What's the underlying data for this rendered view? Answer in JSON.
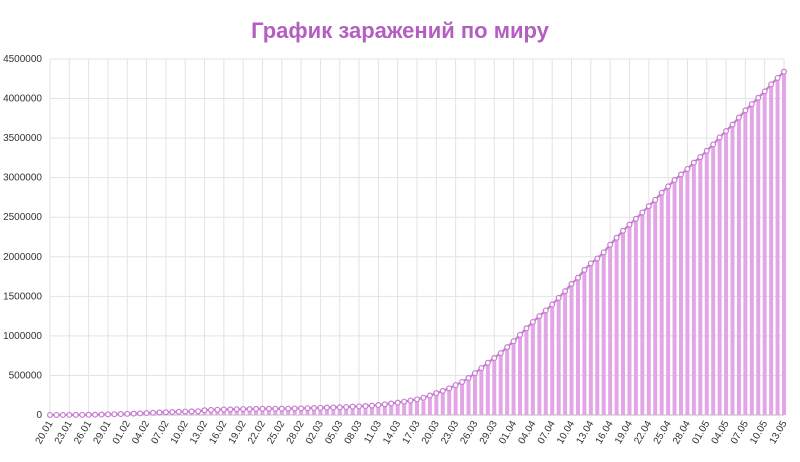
{
  "chart_data": {
    "type": "bar",
    "title": "График заражений по миру",
    "xlabel": "",
    "ylabel": "",
    "ylim": [
      0,
      4500000
    ],
    "yticks": [
      0,
      500000,
      1000000,
      1500000,
      2000000,
      2500000,
      3000000,
      3500000,
      4000000,
      4500000
    ],
    "grid": true,
    "legend": "none",
    "colors": {
      "title": "#b35fc0",
      "bar": "#e2a6e6",
      "line": "#c77dd0",
      "point": "#c77dd0",
      "grid": "#e3e3e3"
    },
    "categories": [
      "20.01",
      "21.01",
      "22.01",
      "23.01",
      "24.01",
      "25.01",
      "26.01",
      "27.01",
      "28.01",
      "29.01",
      "30.01",
      "31.01",
      "01.02",
      "02.02",
      "03.02",
      "04.02",
      "05.02",
      "06.02",
      "07.02",
      "08.02",
      "09.02",
      "10.02",
      "11.02",
      "12.02",
      "13.02",
      "14.02",
      "15.02",
      "16.02",
      "17.02",
      "18.02",
      "19.02",
      "20.02",
      "21.02",
      "22.02",
      "23.02",
      "24.02",
      "25.02",
      "26.02",
      "27.02",
      "28.02",
      "29.02",
      "01.03",
      "02.03",
      "03.03",
      "04.03",
      "05.03",
      "06.03",
      "07.03",
      "08.03",
      "09.03",
      "10.03",
      "11.03",
      "12.03",
      "13.03",
      "14.03",
      "15.03",
      "16.03",
      "17.03",
      "18.03",
      "19.03",
      "20.03",
      "21.03",
      "22.03",
      "23.03",
      "24.03",
      "25.03",
      "26.03",
      "27.03",
      "28.03",
      "29.03",
      "30.03",
      "31.03",
      "01.04",
      "02.04",
      "03.04",
      "04.04",
      "05.04",
      "06.04",
      "07.04",
      "08.04",
      "09.04",
      "10.04",
      "11.04",
      "12.04",
      "13.04",
      "14.04",
      "15.04",
      "16.04",
      "17.04",
      "18.04",
      "19.04",
      "20.04",
      "21.04",
      "22.04",
      "23.04",
      "24.04",
      "25.04",
      "26.04",
      "27.04",
      "28.04",
      "29.04",
      "30.04",
      "01.05",
      "02.05",
      "03.05",
      "04.05",
      "05.05",
      "06.05",
      "07.05",
      "08.05",
      "09.05",
      "10.05",
      "11.05",
      "12.05",
      "13.05"
    ],
    "tick_labels": [
      "20.01",
      "23.01",
      "26.01",
      "29.01",
      "01.02",
      "04.02",
      "07.02",
      "10.02",
      "13.02",
      "16.02",
      "19.02",
      "22.02",
      "25.02",
      "28.02",
      "02.03",
      "05.03",
      "08.03",
      "11.03",
      "14.03",
      "17.03",
      "20.03",
      "23.03",
      "26.03",
      "29.03",
      "01.04",
      "04.04",
      "07.04",
      "10.04",
      "13.04",
      "16.04",
      "19.04",
      "22.04",
      "25.04",
      "28.04",
      "01.05",
      "04.05",
      "07.05",
      "10.05",
      "13.05"
    ],
    "values": [
      300,
      400,
      600,
      900,
      1300,
      2000,
      2800,
      4600,
      6000,
      7800,
      9800,
      11900,
      14600,
      17400,
      20600,
      24500,
      28300,
      31500,
      34900,
      37600,
      40500,
      43100,
      45200,
      47700,
      60000,
      64000,
      67000,
      69000,
      71000,
      73000,
      75000,
      75700,
      76800,
      78600,
      79000,
      79500,
      80400,
      81300,
      82700,
      84100,
      86000,
      88300,
      90400,
      92800,
      95100,
      97900,
      101800,
      105800,
      109800,
      113600,
      118600,
      125900,
      134500,
      145500,
      156100,
      169400,
      182400,
      198100,
      218800,
      245700,
      275900,
      304500,
      337200,
      378400,
      417500,
      467600,
      529600,
      593300,
      660700,
      720100,
      782400,
      857500,
      932600,
      1013000,
      1095900,
      1175800,
      1249700,
      1321500,
      1396500,
      1480200,
      1565300,
      1657500,
      1735000,
      1834000,
      1917000,
      1978000,
      2056000,
      2152000,
      2240000,
      2329000,
      2406000,
      2480000,
      2560000,
      2640000,
      2720000,
      2810000,
      2890000,
      2970000,
      3040000,
      3110000,
      3190000,
      3260000,
      3340000,
      3420000,
      3510000,
      3590000,
      3670000,
      3760000,
      3850000,
      3930000,
      4010000,
      4090000,
      4180000,
      4260000,
      4340000
    ]
  }
}
